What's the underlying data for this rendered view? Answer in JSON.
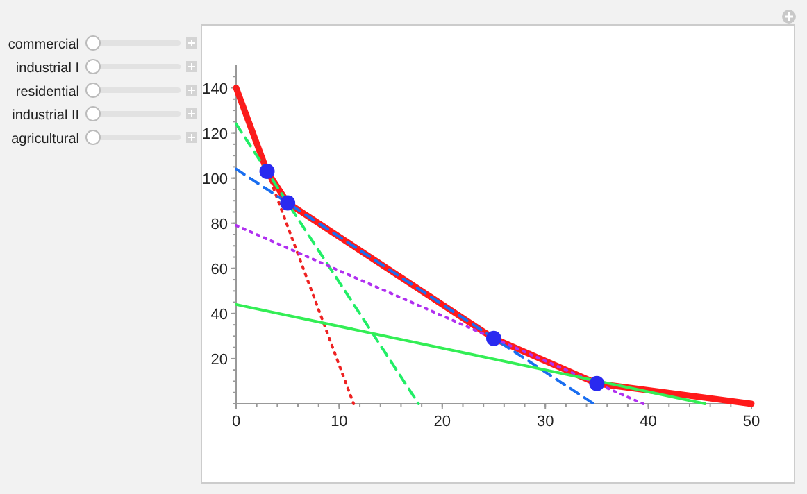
{
  "chart_data": {
    "type": "line",
    "xlim": [
      0,
      50
    ],
    "ylim": [
      0,
      150
    ],
    "xticks": [
      0,
      10,
      20,
      30,
      40,
      50
    ],
    "yticks": [
      20,
      40,
      60,
      80,
      100,
      120,
      140
    ],
    "annotations": [
      "commercial",
      "industrial I",
      "residential",
      "industrial II",
      "agricultural"
    ],
    "series": [
      {
        "color": "#ff1a1a",
        "line_style": "solid",
        "x": [
          0,
          3,
          5,
          25,
          35,
          50
        ],
        "values": [
          140,
          103,
          89,
          29,
          9,
          0
        ]
      },
      {
        "type": "line",
        "color": "#ee2222",
        "line_style": "dotted",
        "x": [
          0,
          11.4
        ],
        "values": [
          140,
          0
        ]
      },
      {
        "type": "line",
        "color": "#22ee66",
        "line_style": "dashed",
        "x": [
          0,
          17.7
        ],
        "values": [
          124,
          0
        ]
      },
      {
        "type": "line",
        "color": "#1a6ef0",
        "line_style": "dashed",
        "x": [
          0,
          34.7
        ],
        "values": [
          104,
          0
        ]
      },
      {
        "type": "line",
        "color": "#b030f0",
        "line_style": "dotted",
        "x": [
          0,
          39.5
        ],
        "values": [
          79,
          0
        ]
      },
      {
        "type": "line",
        "color": "#33ee55",
        "line_style": "solid",
        "x": [
          0,
          45.5
        ],
        "values": [
          44,
          0
        ]
      },
      {
        "type": "scatter",
        "color": "#2a2af0",
        "marker": "circle",
        "x": [
          3,
          5,
          25,
          35
        ],
        "values": [
          103,
          89,
          29,
          9
        ]
      }
    ]
  }
}
